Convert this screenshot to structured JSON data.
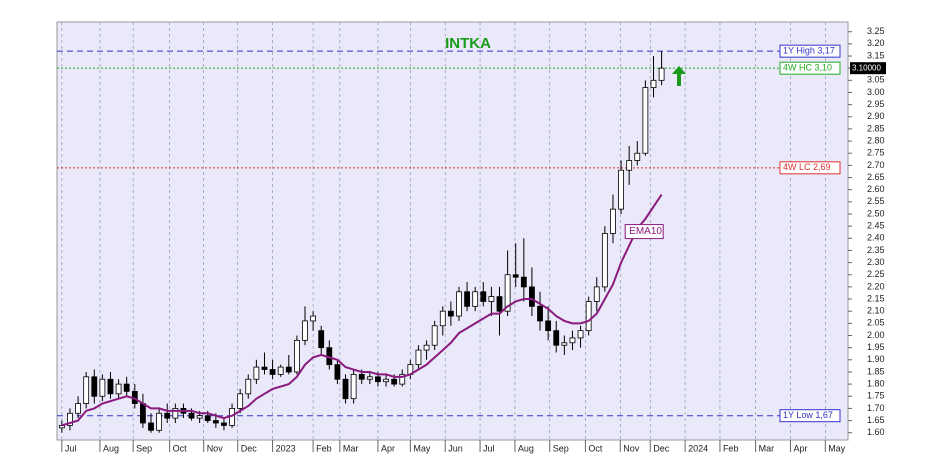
{
  "chart_data": {
    "type": "candlestick",
    "title": "INTKA",
    "ylim": [
      1.57,
      3.29
    ],
    "yticks": [
      {
        "value": 1.6,
        "label": "1.60"
      },
      1.65,
      {
        "value": 1.7,
        "label": "1.70"
      },
      1.75,
      {
        "value": 1.8,
        "label": "1.80"
      },
      1.85,
      {
        "value": 1.9,
        "label": "1.90"
      },
      1.95,
      {
        "value": 2,
        "label": "2.00"
      },
      2.05,
      {
        "value": 2.1,
        "label": "2.10"
      },
      2.15,
      {
        "value": 2.2,
        "label": "2.20"
      },
      2.25,
      {
        "value": 2.3,
        "label": "2.30"
      },
      2.35,
      {
        "value": 2.4,
        "label": "2.40"
      },
      2.45,
      {
        "value": 2.5,
        "label": "2.50"
      },
      2.55,
      {
        "value": 2.6,
        "label": "2.60"
      },
      2.65,
      {
        "value": 2.7,
        "label": "2.70"
      },
      2.75,
      {
        "value": 2.8,
        "label": "2.80"
      },
      2.85,
      {
        "value": 2.9,
        "label": "2.90"
      },
      2.95,
      {
        "value": 3,
        "label": "3.00"
      },
      3.05,
      {
        "value": 3.1,
        "label": "3.10"
      },
      3.15,
      {
        "value": 3.2,
        "label": "3.20"
      },
      3.25
    ],
    "xlim": [
      -0.6,
      97
    ],
    "xticks": [
      {
        "value": 0,
        "label": "Jul"
      },
      {
        "value": 4.7,
        "label": "Aug"
      },
      {
        "value": 8.8,
        "label": "Sep"
      },
      {
        "value": 13.3,
        "label": "Oct"
      },
      {
        "value": 17.5,
        "label": "Nov"
      },
      {
        "value": 21.7,
        "label": "Dec"
      },
      {
        "value": 26,
        "label": "2023"
      },
      {
        "value": 31,
        "label": "Feb"
      },
      {
        "value": 34.3,
        "label": "Mar"
      },
      {
        "value": 39,
        "label": "Apr"
      },
      {
        "value": 43,
        "label": "May"
      },
      {
        "value": 47.3,
        "label": "Jun"
      },
      {
        "value": 51.6,
        "label": "Jul"
      },
      {
        "value": 55.9,
        "label": "Aug"
      },
      {
        "value": 60.2,
        "label": "Sep"
      },
      {
        "value": 64.6,
        "label": "Oct"
      },
      {
        "value": 68.9,
        "label": "Nov"
      },
      {
        "value": 72.6,
        "label": "Dec"
      },
      {
        "value": 76.9,
        "label": "2024"
      },
      {
        "value": 81.2,
        "label": "Feb"
      },
      {
        "value": 85.6,
        "label": "Mar"
      },
      {
        "value": 89.9,
        "label": "Apr"
      },
      {
        "value": 94.2,
        "label": "May"
      }
    ],
    "grid": "x",
    "candles": {
      "open": [
        1.62,
        1.63,
        1.68,
        1.72,
        1.83,
        1.75,
        1.82,
        1.76,
        1.8,
        1.77,
        1.72,
        1.64,
        1.61,
        1.68,
        1.66,
        1.7,
        1.68,
        1.66,
        1.67,
        1.65,
        1.64,
        1.63,
        1.7,
        1.76,
        1.82,
        1.87,
        1.86,
        1.84,
        1.87,
        1.85,
        1.98,
        2.06,
        2.02,
        1.95,
        1.88,
        1.82,
        1.74,
        1.84,
        1.82,
        1.83,
        1.81,
        1.82,
        1.8,
        1.84,
        1.88,
        1.94,
        1.96,
        2.04,
        2.1,
        2.08,
        2.18,
        2.12,
        2.18,
        2.14,
        2.16,
        2.1,
        2.25,
        2.24,
        2.2,
        2.12,
        2.06,
        2.02,
        1.96,
        1.97,
        1.99,
        2.02,
        2.14,
        2.2,
        2.42,
        2.52,
        2.68,
        2.72,
        2.75,
        3.02,
        3.05
      ],
      "high": [
        1.65,
        1.7,
        1.75,
        1.85,
        1.86,
        1.84,
        1.85,
        1.82,
        1.83,
        1.8,
        1.76,
        1.68,
        1.7,
        1.72,
        1.72,
        1.72,
        1.7,
        1.69,
        1.69,
        1.68,
        1.66,
        1.72,
        1.78,
        1.84,
        1.9,
        1.93,
        1.9,
        1.88,
        1.92,
        2.0,
        2.12,
        2.1,
        2.04,
        1.98,
        1.9,
        1.84,
        1.86,
        1.86,
        1.85,
        1.85,
        1.84,
        1.84,
        1.86,
        1.9,
        1.96,
        1.98,
        2.06,
        2.12,
        2.14,
        2.2,
        2.22,
        2.2,
        2.22,
        2.2,
        2.2,
        2.35,
        2.38,
        2.4,
        2.28,
        2.18,
        2.12,
        2.06,
        2.0,
        2.02,
        2.04,
        2.16,
        2.24,
        2.45,
        2.58,
        2.72,
        2.78,
        2.8,
        3.05,
        3.15,
        3.17
      ],
      "low": [
        1.6,
        1.61,
        1.66,
        1.7,
        1.72,
        1.73,
        1.74,
        1.74,
        1.75,
        1.7,
        1.62,
        1.6,
        1.6,
        1.64,
        1.64,
        1.66,
        1.65,
        1.64,
        1.64,
        1.62,
        1.61,
        1.62,
        1.68,
        1.74,
        1.8,
        1.84,
        1.82,
        1.83,
        1.84,
        1.84,
        1.96,
        2.02,
        1.92,
        1.86,
        1.8,
        1.72,
        1.72,
        1.8,
        1.8,
        1.79,
        1.79,
        1.79,
        1.79,
        1.82,
        1.86,
        1.9,
        1.94,
        2.0,
        2.04,
        2.06,
        2.1,
        2.1,
        2.12,
        2.08,
        2.0,
        2.08,
        2.2,
        2.14,
        2.08,
        2.02,
        1.98,
        1.93,
        1.92,
        1.94,
        1.95,
        2.0,
        2.1,
        2.18,
        2.38,
        2.5,
        2.62,
        2.7,
        2.74,
        2.98,
        3.03
      ],
      "close": [
        1.63,
        1.68,
        1.72,
        1.83,
        1.75,
        1.82,
        1.76,
        1.8,
        1.77,
        1.72,
        1.64,
        1.61,
        1.68,
        1.66,
        1.7,
        1.68,
        1.66,
        1.67,
        1.65,
        1.64,
        1.63,
        1.7,
        1.76,
        1.82,
        1.87,
        1.86,
        1.84,
        1.87,
        1.85,
        1.98,
        2.06,
        2.08,
        1.95,
        1.88,
        1.82,
        1.74,
        1.84,
        1.82,
        1.83,
        1.81,
        1.82,
        1.8,
        1.84,
        1.88,
        1.94,
        1.96,
        2.04,
        2.1,
        2.08,
        2.18,
        2.12,
        2.18,
        2.14,
        2.16,
        2.1,
        2.25,
        2.24,
        2.2,
        2.12,
        2.06,
        2.02,
        1.96,
        1.97,
        1.99,
        2.02,
        2.14,
        2.2,
        2.42,
        2.52,
        2.68,
        2.72,
        2.75,
        3.02,
        3.05,
        3.1
      ]
    },
    "series": [
      {
        "name": "EMA10",
        "color": "#8b1a7e",
        "values": [
          1.63,
          1.64,
          1.65,
          1.69,
          1.7,
          1.72,
          1.73,
          1.74,
          1.75,
          1.74,
          1.72,
          1.7,
          1.7,
          1.69,
          1.69,
          1.69,
          1.69,
          1.68,
          1.68,
          1.67,
          1.66,
          1.67,
          1.69,
          1.71,
          1.74,
          1.76,
          1.78,
          1.79,
          1.8,
          1.83,
          1.88,
          1.91,
          1.92,
          1.91,
          1.9,
          1.87,
          1.86,
          1.85,
          1.85,
          1.84,
          1.84,
          1.83,
          1.83,
          1.84,
          1.86,
          1.88,
          1.91,
          1.94,
          1.97,
          2.01,
          2.03,
          2.05,
          2.07,
          2.09,
          2.09,
          2.12,
          2.14,
          2.15,
          2.15,
          2.13,
          2.11,
          2.08,
          2.06,
          2.05,
          2.05,
          2.06,
          2.09,
          2.15,
          2.21,
          2.3,
          2.37,
          2.44,
          2.48,
          2.53,
          2.58
        ]
      }
    ],
    "levels": [
      {
        "label": "1Y High 3,17",
        "value": 3.17,
        "color": "#3333cc",
        "style": "dashed"
      },
      {
        "label": "4W HC 3,10",
        "value": 3.1,
        "color": "#22aa22",
        "style": "dotted"
      },
      {
        "label": "4W LC 2,69",
        "value": 2.69,
        "color": "#e03030",
        "style": "dotted"
      },
      {
        "label": "1Y Low 1,67",
        "value": 1.67,
        "color": "#3333cc",
        "style": "dashed"
      }
    ],
    "last": {
      "value": 3.1,
      "label": "3.10000"
    }
  }
}
